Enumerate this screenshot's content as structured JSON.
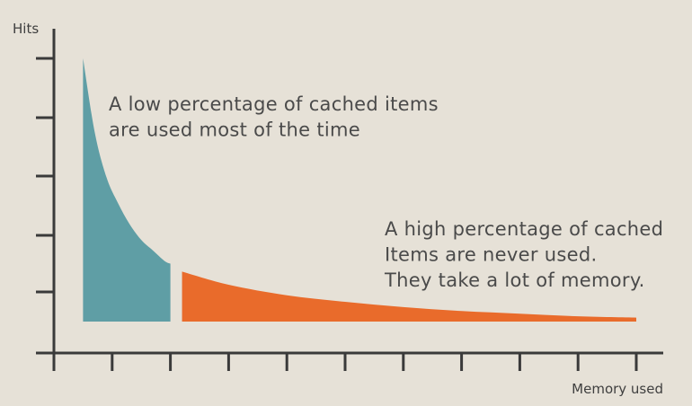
{
  "chart_data": {
    "type": "area",
    "ylabel": "Hits",
    "xlabel": "Memory used",
    "x_tick_count": 11,
    "y_tick_count": 5,
    "series": [
      {
        "role": "frequently-used",
        "color": "#5f9ea5",
        "points": [
          [
            0.5,
            1.0
          ],
          [
            0.7,
            0.72
          ],
          [
            0.9,
            0.55
          ],
          [
            1.1,
            0.45
          ],
          [
            1.3,
            0.37
          ],
          [
            1.5,
            0.31
          ],
          [
            1.7,
            0.27
          ],
          [
            1.9,
            0.23
          ],
          [
            2.0,
            0.22
          ]
        ]
      },
      {
        "role": "rarely-used",
        "color": "#e96b2b",
        "points": [
          [
            2.2,
            0.19
          ],
          [
            3.0,
            0.14
          ],
          [
            4.0,
            0.1
          ],
          [
            5.0,
            0.075
          ],
          [
            6.0,
            0.055
          ],
          [
            7.0,
            0.04
          ],
          [
            8.0,
            0.03
          ],
          [
            9.0,
            0.02
          ],
          [
            10.0,
            0.015
          ]
        ]
      }
    ],
    "annotations": [
      {
        "lines": [
          "A low percentage of cached items",
          "are used most of the time"
        ]
      },
      {
        "lines": [
          "A high percentage of cached",
          "Items are never used.",
          "They take a lot of memory."
        ]
      }
    ]
  }
}
